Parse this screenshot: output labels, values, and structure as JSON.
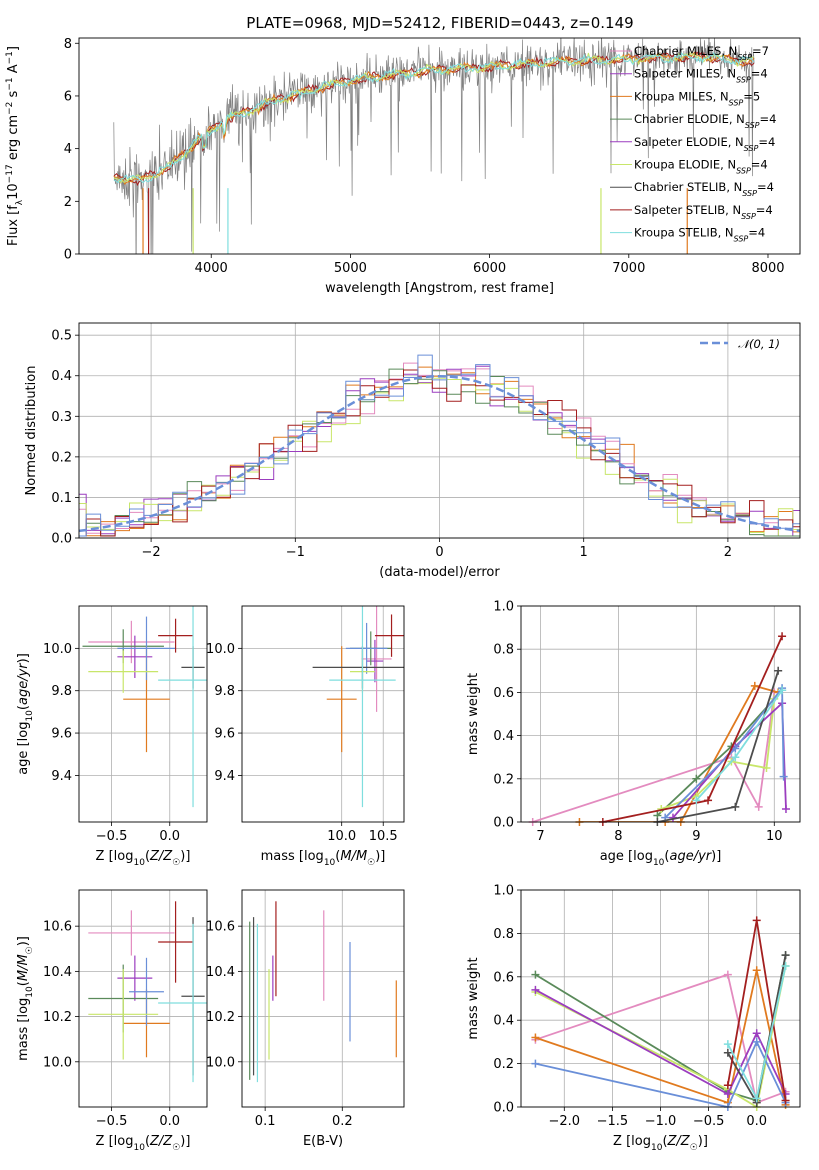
{
  "title": "PLATE=0968, MJD=52412, FIBERID=0443, z=0.149",
  "colors": {
    "blue": "#6a8fd8",
    "orange": "#e07a1f",
    "green": "#5a8a5a",
    "pink": "#e38bbf",
    "purple": "#9b3dbf",
    "yellowgreen": "#c8e66a",
    "darkgray": "#4d4d4d",
    "darkred": "#a31f1f",
    "cyan": "#7fdede",
    "gray": "#808080"
  },
  "chart_data": [
    {
      "id": "spectrum",
      "type": "line",
      "xlabel": "wavelength [Angstrom, rest frame]",
      "ylabel": "Flux [fλ10⁻¹⁷ erg cm⁻² s⁻¹ A⁻¹]",
      "xlim": [
        3050,
        8230
      ],
      "ylim": [
        0,
        8.2
      ],
      "xticks": [
        4000,
        5000,
        6000,
        7000,
        8000
      ],
      "yticks": [
        0,
        2,
        4,
        6,
        8
      ],
      "legend_position": "right",
      "legend": [
        {
          "label": "Chabrier MILES, N",
          "sub": "SSP",
          "suffix": "=7",
          "color": "pink"
        },
        {
          "label": "Salpeter MILES, N",
          "sub": "SSP",
          "suffix": "=4",
          "color": "purple"
        },
        {
          "label": "Kroupa MILES, N",
          "sub": "SSP",
          "suffix": "=5",
          "color": "orange"
        },
        {
          "label": "Chabrier ELODIE, N",
          "sub": "SSP",
          "suffix": "=4",
          "color": "green"
        },
        {
          "label": "Salpeter ELODIE, N",
          "sub": "SSP",
          "suffix": "=4",
          "color": "purple"
        },
        {
          "label": "Kroupa ELODIE, N",
          "sub": "SSP",
          "suffix": "=4",
          "color": "yellowgreen"
        },
        {
          "label": "Chabrier STELIB, N",
          "sub": "SSP",
          "suffix": "=4",
          "color": "darkgray"
        },
        {
          "label": "Salpeter STELIB, N",
          "sub": "SSP",
          "suffix": "=4",
          "color": "darkred"
        },
        {
          "label": "Kroupa STELIB, N",
          "sub": "SSP",
          "suffix": "=4",
          "color": "cyan"
        }
      ],
      "continuum": [
        [
          3300,
          2.9
        ],
        [
          3500,
          2.8
        ],
        [
          3700,
          3.3
        ],
        [
          3900,
          4.3
        ],
        [
          4100,
          5.1
        ],
        [
          4300,
          5.5
        ],
        [
          4500,
          5.9
        ],
        [
          4700,
          6.2
        ],
        [
          5000,
          6.6
        ],
        [
          5300,
          6.8
        ],
        [
          5600,
          7.0
        ],
        [
          6000,
          7.1
        ],
        [
          6500,
          7.3
        ],
        [
          7000,
          7.4
        ],
        [
          7500,
          7.5
        ],
        [
          7900,
          7.3
        ]
      ]
    },
    {
      "id": "residuals",
      "type": "histogram",
      "xlabel": "(data-model)/error",
      "ylabel": "Normed distribution",
      "xlim": [
        -2.5,
        2.5
      ],
      "ylim": [
        0,
        0.53
      ],
      "xticks": [
        -2,
        -1,
        0,
        1,
        2
      ],
      "yticks": [
        0.0,
        0.1,
        0.2,
        0.3,
        0.4,
        0.5
      ],
      "grid": true,
      "legend_position": "top-right",
      "reference_label": "𝒩(0, 1)"
    },
    {
      "id": "age-vs-Z",
      "type": "errorbar",
      "xlabel": "Z [log10(Z/Z☉)]",
      "ylabel": "age  [log10(age/yr)]",
      "xlim": [
        -0.78,
        0.32
      ],
      "ylim": [
        9.18,
        10.2
      ],
      "xticks": [
        -0.5,
        0.0
      ],
      "yticks": [
        9.4,
        9.6,
        9.8,
        10.0
      ],
      "grid": true,
      "points": [
        {
          "color": "pink",
          "x": -0.33,
          "y": 10.03,
          "xerr": 0.37,
          "yerr": 0.1
        },
        {
          "color": "purple",
          "x": -0.3,
          "y": 9.96,
          "xerr": 0.15,
          "yerr": 0.1
        },
        {
          "color": "orange",
          "x": -0.2,
          "y": 9.76,
          "xerr": 0.2,
          "yerr": 0.25
        },
        {
          "color": "green",
          "x": -0.4,
          "y": 10.01,
          "xerr": 0.35,
          "yerr": 0.08
        },
        {
          "color": "blue",
          "x": -0.2,
          "y": 10.0,
          "xerr": 0.25,
          "yerr": 0.15
        },
        {
          "color": "yellowgreen",
          "x": -0.4,
          "y": 9.89,
          "xerr": 0.3,
          "yerr": 0.1
        },
        {
          "color": "darkgray",
          "x": 0.2,
          "y": 9.91,
          "xerr": 0.1,
          "yerr": 0.1
        },
        {
          "color": "darkred",
          "x": 0.05,
          "y": 10.06,
          "xerr": 0.15,
          "yerr": 0.08
        },
        {
          "color": "cyan",
          "x": 0.2,
          "y": 9.85,
          "xerr": 0.3,
          "yerr": 0.6
        }
      ]
    },
    {
      "id": "age-vs-mass",
      "type": "errorbar",
      "xlabel": "mass [log10(M/M☉)]",
      "ylabel": "",
      "xlim": [
        8.8,
        10.75
      ],
      "ylim": [
        9.18,
        10.2
      ],
      "xticks": [
        10.0,
        10.5
      ],
      "yticks": [
        9.4,
        9.6,
        9.8,
        10.0
      ],
      "grid": true,
      "points": [
        {
          "color": "pink",
          "x": 10.42,
          "y": 9.95,
          "xerr": 0.18,
          "yerr": 0.25
        },
        {
          "color": "purple",
          "x": 10.4,
          "y": 9.94,
          "xerr": 0.1,
          "yerr": 0.1
        },
        {
          "color": "orange",
          "x": 10.0,
          "y": 9.76,
          "xerr": 0.18,
          "yerr": 0.25
        },
        {
          "color": "green",
          "x": 10.35,
          "y": 10.0,
          "xerr": 0.25,
          "yerr": 0.08
        },
        {
          "color": "blue",
          "x": 10.3,
          "y": 10.0,
          "xerr": 0.25,
          "yerr": 0.12
        },
        {
          "color": "yellowgreen",
          "x": 10.25,
          "y": 9.89,
          "xerr": 0.15,
          "yerr": 0.1
        },
        {
          "color": "darkgray",
          "x": 10.25,
          "y": 9.91,
          "xerr": 0.6,
          "yerr": 0.1
        },
        {
          "color": "darkred",
          "x": 10.6,
          "y": 10.06,
          "xerr": 0.2,
          "yerr": 0.1
        },
        {
          "color": "cyan",
          "x": 10.25,
          "y": 9.85,
          "xerr": 0.4,
          "yerr": 0.6
        }
      ]
    },
    {
      "id": "weight-vs-age",
      "type": "line",
      "xlabel": "age  [log10(age/yr)]",
      "ylabel": "mass weight",
      "xlim": [
        6.75,
        10.33
      ],
      "ylim": [
        0,
        1.0
      ],
      "xticks": [
        7,
        8,
        9,
        10
      ],
      "yticks": [
        0.0,
        0.2,
        0.4,
        0.6,
        0.8,
        1.0
      ],
      "grid": true,
      "series": [
        {
          "color": "pink",
          "x": [
            6.9,
            9.45,
            9.8,
            10.0
          ],
          "y": [
            0.0,
            0.3,
            0.07,
            0.6
          ]
        },
        {
          "color": "orange",
          "x": [
            7.5,
            8.6,
            8.8,
            9.75,
            10.05
          ],
          "y": [
            0.0,
            0.0,
            0.0,
            0.63,
            0.6
          ]
        },
        {
          "color": "green",
          "x": [
            8.5,
            9.0,
            9.45,
            10.1
          ],
          "y": [
            0.03,
            0.2,
            0.35,
            0.61
          ]
        },
        {
          "color": "yellowgreen",
          "x": [
            8.55,
            9.0,
            9.45,
            9.9,
            10.0
          ],
          "y": [
            0.06,
            0.12,
            0.28,
            0.25,
            0.57
          ]
        },
        {
          "color": "purple",
          "x": [
            8.7,
            9.5,
            10.1,
            10.15
          ],
          "y": [
            0.02,
            0.35,
            0.55,
            0.06
          ]
        },
        {
          "color": "blue",
          "x": [
            8.6,
            9.5,
            10.1,
            10.12
          ],
          "y": [
            0.02,
            0.34,
            0.62,
            0.21
          ]
        },
        {
          "color": "darkgray",
          "x": [
            8.5,
            9.5,
            10.05
          ],
          "y": [
            0.0,
            0.07,
            0.7
          ]
        },
        {
          "color": "darkred",
          "x": [
            7.8,
            9.15,
            10.1
          ],
          "y": [
            0.0,
            0.1,
            0.86
          ]
        },
        {
          "color": "cyan",
          "x": [
            9.0,
            9.5,
            10.1
          ],
          "y": [
            0.1,
            0.3,
            0.61
          ]
        }
      ]
    },
    {
      "id": "mass-vs-Z",
      "type": "errorbar",
      "xlabel": "Z [log10(Z/Z☉)]",
      "ylabel": "mass [log10(M/M☉)]",
      "xlim": [
        -0.78,
        0.32
      ],
      "ylim": [
        9.8,
        10.76
      ],
      "xticks": [
        -0.5,
        0.0
      ],
      "yticks": [
        10.0,
        10.2,
        10.4,
        10.6
      ],
      "grid": true,
      "points": [
        {
          "color": "pink",
          "x": -0.33,
          "y": 10.57,
          "xerr": 0.37,
          "yerr": 0.1
        },
        {
          "color": "purple",
          "x": -0.3,
          "y": 10.37,
          "xerr": 0.15,
          "yerr": 0.1
        },
        {
          "color": "orange",
          "x": -0.2,
          "y": 10.17,
          "xerr": 0.2,
          "yerr": 0.15
        },
        {
          "color": "green",
          "x": -0.4,
          "y": 10.28,
          "xerr": 0.3,
          "yerr": 0.15
        },
        {
          "color": "blue",
          "x": -0.2,
          "y": 10.31,
          "xerr": 0.15,
          "yerr": 0.15
        },
        {
          "color": "yellowgreen",
          "x": -0.4,
          "y": 10.21,
          "xerr": 0.3,
          "yerr": 0.2
        },
        {
          "color": "darkgray",
          "x": 0.2,
          "y": 10.29,
          "xerr": 0.1,
          "yerr": 0.35
        },
        {
          "color": "darkred",
          "x": 0.05,
          "y": 10.53,
          "xerr": 0.15,
          "yerr": 0.18
        },
        {
          "color": "cyan",
          "x": 0.2,
          "y": 10.26,
          "xerr": 0.3,
          "yerr": 0.35
        }
      ]
    },
    {
      "id": "mass-vs-ebv",
      "type": "errorbar",
      "xlabel": "E(B-V)",
      "ylabel": "",
      "xlim": [
        0.07,
        0.28
      ],
      "ylim": [
        9.8,
        10.76
      ],
      "xticks": [
        0.1,
        0.2
      ],
      "yticks": [
        10.0,
        10.2,
        10.4,
        10.6
      ],
      "grid": true,
      "points": [
        {
          "color": "pink",
          "x": 0.176,
          "y": 10.47,
          "xerr": 0,
          "yerr": 0.2
        },
        {
          "color": "purple",
          "x": 0.11,
          "y": 10.37,
          "xerr": 0,
          "yerr": 0.1
        },
        {
          "color": "orange",
          "x": 0.27,
          "y": 10.19,
          "xerr": 0,
          "yerr": 0.17
        },
        {
          "color": "green",
          "x": 0.08,
          "y": 10.27,
          "xerr": 0,
          "yerr": 0.35
        },
        {
          "color": "blue",
          "x": 0.21,
          "y": 10.31,
          "xerr": 0,
          "yerr": 0.22
        },
        {
          "color": "yellowgreen",
          "x": 0.105,
          "y": 10.21,
          "xerr": 0,
          "yerr": 0.2
        },
        {
          "color": "darkgray",
          "x": 0.085,
          "y": 10.29,
          "xerr": 0,
          "yerr": 0.35
        },
        {
          "color": "darkred",
          "x": 0.114,
          "y": 10.5,
          "xerr": 0,
          "yerr": 0.21
        },
        {
          "color": "cyan",
          "x": 0.09,
          "y": 10.26,
          "xerr": 0,
          "yerr": 0.35
        }
      ]
    },
    {
      "id": "weight-vs-Z",
      "type": "line",
      "xlabel": "Z [log10(Z/Z☉)]",
      "ylabel": "mass weight",
      "xlim": [
        -2.45,
        0.45
      ],
      "ylim": [
        0,
        1.0
      ],
      "xticks": [
        -2.0,
        -1.5,
        -1.0,
        -0.5,
        0.0
      ],
      "yticks": [
        0.0,
        0.2,
        0.4,
        0.6,
        0.8,
        1.0
      ],
      "grid": true,
      "series": [
        {
          "color": "pink",
          "x": [
            -2.3,
            -0.3,
            0.0,
            0.3
          ],
          "y": [
            0.31,
            0.61,
            0.02,
            0.07
          ]
        },
        {
          "color": "orange",
          "x": [
            -2.3,
            -0.3,
            0.0,
            0.3
          ],
          "y": [
            0.32,
            0.02,
            0.63,
            0.01
          ]
        },
        {
          "color": "green",
          "x": [
            -2.3,
            -0.3,
            0.0,
            0.3
          ],
          "y": [
            0.61,
            0.07,
            0.03,
            0.7
          ]
        },
        {
          "color": "yellowgreen",
          "x": [
            -2.3,
            -0.3,
            0.0,
            0.3
          ],
          "y": [
            0.53,
            0.08,
            0.0,
            0.65
          ]
        },
        {
          "color": "purple",
          "x": [
            -2.3,
            -0.3,
            0.0,
            0.3
          ],
          "y": [
            0.54,
            0.06,
            0.34,
            0.06
          ]
        },
        {
          "color": "blue",
          "x": [
            -2.3,
            -0.3,
            0.0,
            0.3
          ],
          "y": [
            0.2,
            0.0,
            0.3,
            0.02
          ]
        },
        {
          "color": "darkgray",
          "x": [
            -0.3,
            0.0,
            0.3
          ],
          "y": [
            0.25,
            0.02,
            0.7
          ]
        },
        {
          "color": "darkred",
          "x": [
            -0.3,
            0.0,
            0.3
          ],
          "y": [
            0.1,
            0.86,
            0.03
          ]
        },
        {
          "color": "cyan",
          "x": [
            -0.3,
            0.0,
            0.3
          ],
          "y": [
            0.29,
            0.04,
            0.65
          ]
        }
      ]
    }
  ]
}
